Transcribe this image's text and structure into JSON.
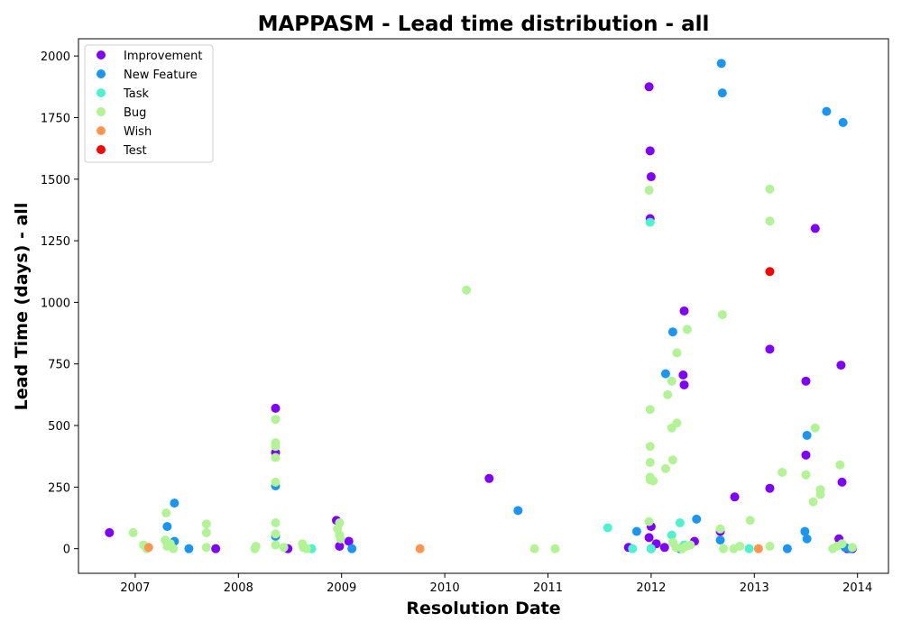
{
  "chart_data": {
    "type": "scatter",
    "title": "MAPPASM - Lead time distribution - all",
    "xlabel": "Resolution Date",
    "ylabel": "Lead Time (days) - all",
    "xlim": [
      2006.45,
      2014.3
    ],
    "ylim": [
      -100,
      2070
    ],
    "x_ticks": [
      2007,
      2008,
      2009,
      2010,
      2011,
      2012,
      2013,
      2014
    ],
    "y_ticks": [
      0,
      250,
      500,
      750,
      1000,
      1250,
      1500,
      1750,
      2000
    ],
    "y_tick_labels": [
      "0",
      "250",
      "500",
      "750",
      "1000",
      "1250",
      "1500",
      "1750",
      "2000"
    ],
    "grid": false,
    "legend_position": "top-left",
    "series": [
      {
        "name": "Improvement",
        "color": "#8000ff",
        "points": [
          [
            2006.75,
            65
          ],
          [
            2007.78,
            0
          ],
          [
            2008.36,
            570
          ],
          [
            2008.36,
            390
          ],
          [
            2008.48,
            0
          ],
          [
            2008.95,
            115
          ],
          [
            2008.98,
            10
          ],
          [
            2009.07,
            30
          ],
          [
            2010.43,
            285
          ],
          [
            2011.78,
            5
          ],
          [
            2011.98,
            45
          ],
          [
            2011.98,
            1875
          ],
          [
            2011.99,
            1615
          ],
          [
            2012.0,
            1510
          ],
          [
            2011.99,
            1340
          ],
          [
            2012.0,
            90
          ],
          [
            2012.0,
            0
          ],
          [
            2012.05,
            20
          ],
          [
            2012.13,
            5
          ],
          [
            2012.32,
            965
          ],
          [
            2012.31,
            705
          ],
          [
            2012.32,
            665
          ],
          [
            2012.42,
            30
          ],
          [
            2012.67,
            70
          ],
          [
            2012.81,
            210
          ],
          [
            2013.15,
            810
          ],
          [
            2013.15,
            245
          ],
          [
            2013.5,
            680
          ],
          [
            2013.5,
            380
          ],
          [
            2013.59,
            1300
          ],
          [
            2013.82,
            40
          ],
          [
            2013.84,
            745
          ],
          [
            2013.85,
            270
          ],
          [
            2013.9,
            0
          ],
          [
            2013.95,
            0
          ]
        ]
      },
      {
        "name": "New Feature",
        "color": "#1996f3",
        "points": [
          [
            2007.31,
            90
          ],
          [
            2007.38,
            185
          ],
          [
            2007.38,
            30
          ],
          [
            2007.52,
            0
          ],
          [
            2008.36,
            255
          ],
          [
            2008.36,
            50
          ],
          [
            2009.1,
            0
          ],
          [
            2010.71,
            155
          ],
          [
            2011.86,
            70
          ],
          [
            2012.0,
            0
          ],
          [
            2012.14,
            710
          ],
          [
            2012.21,
            880
          ],
          [
            2012.28,
            0
          ],
          [
            2012.44,
            120
          ],
          [
            2012.67,
            35
          ],
          [
            2012.68,
            1970
          ],
          [
            2012.69,
            1850
          ],
          [
            2013.32,
            0
          ],
          [
            2013.49,
            70
          ],
          [
            2013.51,
            40
          ],
          [
            2013.51,
            460
          ],
          [
            2013.7,
            1775
          ],
          [
            2013.86,
            1730
          ],
          [
            2013.88,
            5
          ],
          [
            2013.93,
            0
          ]
        ]
      },
      {
        "name": "Task",
        "color": "#4df3ce",
        "points": [
          [
            2008.71,
            0
          ],
          [
            2011.58,
            85
          ],
          [
            2011.82,
            0
          ],
          [
            2011.99,
            1325
          ],
          [
            2012.0,
            0
          ],
          [
            2012.2,
            55
          ],
          [
            2012.28,
            105
          ],
          [
            2012.32,
            15
          ],
          [
            2012.95,
            0
          ]
        ]
      },
      {
        "name": "Bug",
        "color": "#b2f396",
        "points": [
          [
            2006.98,
            65
          ],
          [
            2007.08,
            15
          ],
          [
            2007.11,
            0
          ],
          [
            2007.3,
            145
          ],
          [
            2007.29,
            35
          ],
          [
            2007.31,
            10
          ],
          [
            2007.34,
            20
          ],
          [
            2007.37,
            0
          ],
          [
            2007.69,
            100
          ],
          [
            2007.69,
            65
          ],
          [
            2007.69,
            5
          ],
          [
            2008.16,
            0
          ],
          [
            2008.17,
            10
          ],
          [
            2008.36,
            525
          ],
          [
            2008.36,
            430
          ],
          [
            2008.36,
            415
          ],
          [
            2008.36,
            370
          ],
          [
            2008.36,
            270
          ],
          [
            2008.36,
            105
          ],
          [
            2008.36,
            60
          ],
          [
            2008.36,
            15
          ],
          [
            2008.44,
            5
          ],
          [
            2008.62,
            20
          ],
          [
            2008.63,
            5
          ],
          [
            2008.66,
            0
          ],
          [
            2008.96,
            80
          ],
          [
            2008.98,
            105
          ],
          [
            2008.98,
            55
          ],
          [
            2008.99,
            40
          ],
          [
            2010.21,
            1050
          ],
          [
            2010.87,
            0
          ],
          [
            2011.07,
            0
          ],
          [
            2011.98,
            1455
          ],
          [
            2011.99,
            565
          ],
          [
            2011.99,
            415
          ],
          [
            2011.99,
            350
          ],
          [
            2011.99,
            290
          ],
          [
            2011.99,
            280
          ],
          [
            2012.02,
            275
          ],
          [
            2011.98,
            110
          ],
          [
            2012.14,
            325
          ],
          [
            2012.16,
            625
          ],
          [
            2012.2,
            680
          ],
          [
            2012.2,
            490
          ],
          [
            2012.21,
            360
          ],
          [
            2012.25,
            795
          ],
          [
            2012.25,
            510
          ],
          [
            2012.21,
            25
          ],
          [
            2012.24,
            5
          ],
          [
            2012.3,
            0
          ],
          [
            2012.34,
            10
          ],
          [
            2012.38,
            15
          ],
          [
            2012.35,
            890
          ],
          [
            2012.69,
            950
          ],
          [
            2012.67,
            80
          ],
          [
            2012.7,
            0
          ],
          [
            2012.8,
            0
          ],
          [
            2012.86,
            10
          ],
          [
            2012.96,
            115
          ],
          [
            2013.15,
            1460
          ],
          [
            2013.15,
            1330
          ],
          [
            2013.15,
            10
          ],
          [
            2013.27,
            310
          ],
          [
            2013.5,
            300
          ],
          [
            2013.57,
            190
          ],
          [
            2013.59,
            490
          ],
          [
            2013.64,
            240
          ],
          [
            2013.64,
            220
          ],
          [
            2013.76,
            0
          ],
          [
            2013.8,
            10
          ],
          [
            2013.83,
            340
          ],
          [
            2013.85,
            20
          ],
          [
            2013.95,
            5
          ]
        ]
      },
      {
        "name": "Wish",
        "color": "#ff964f",
        "points": [
          [
            2007.13,
            5
          ],
          [
            2009.76,
            0
          ],
          [
            2013.04,
            0
          ]
        ]
      },
      {
        "name": "Test",
        "color": "#ff0000",
        "points": [
          [
            2013.15,
            1125
          ]
        ]
      }
    ]
  }
}
